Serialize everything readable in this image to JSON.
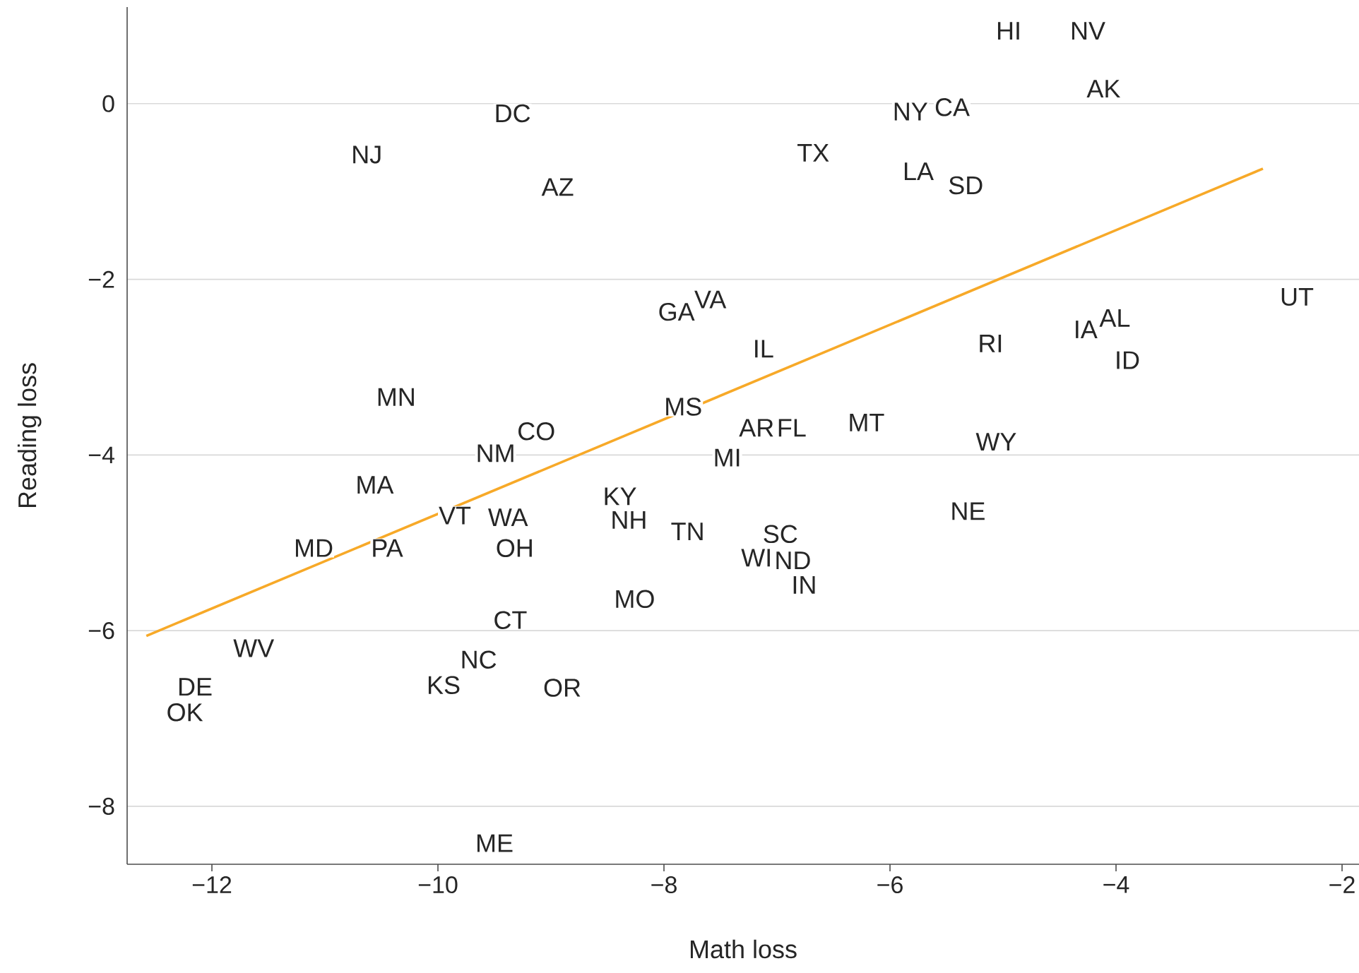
{
  "chart_data": {
    "type": "line",
    "xlabel": "Math loss",
    "ylabel": "Reading loss",
    "xlim": [
      -12.75,
      -1.85
    ],
    "ylim": [
      -8.66,
      1.1
    ],
    "xticks": [
      {
        "value": -12,
        "label": "−12"
      },
      {
        "value": -10,
        "label": "−10"
      },
      {
        "value": -8,
        "label": "−8"
      },
      {
        "value": -6,
        "label": "−6"
      },
      {
        "value": -4,
        "label": "−4"
      },
      {
        "value": -2,
        "label": "−2"
      }
    ],
    "yticks": [
      {
        "value": 0,
        "label": "0"
      },
      {
        "value": -2,
        "label": "−2"
      },
      {
        "value": -4,
        "label": "−4"
      },
      {
        "value": -6,
        "label": "−6"
      },
      {
        "value": -8,
        "label": "−8"
      }
    ],
    "grid": "y",
    "series": [
      {
        "color": "#f7a928",
        "x": [
          -12.58,
          -2.7
        ],
        "values": [
          -6.06,
          -0.74
        ]
      }
    ],
    "annotations": [
      {
        "text": "HI",
        "x": -4.95,
        "y": 0.83
      },
      {
        "text": "NV",
        "x": -4.25,
        "y": 0.83
      },
      {
        "text": "AK",
        "x": -4.11,
        "y": 0.17
      },
      {
        "text": "NY",
        "x": -5.82,
        "y": -0.09
      },
      {
        "text": "CA",
        "x": -5.45,
        "y": -0.04
      },
      {
        "text": "TX",
        "x": -6.68,
        "y": -0.56
      },
      {
        "text": "LA",
        "x": -5.75,
        "y": -0.77
      },
      {
        "text": "SD",
        "x": -5.33,
        "y": -0.93
      },
      {
        "text": "DC",
        "x": -9.34,
        "y": -0.11
      },
      {
        "text": "NJ",
        "x": -10.63,
        "y": -0.58
      },
      {
        "text": "AZ",
        "x": -8.94,
        "y": -0.95
      },
      {
        "text": "GA",
        "x": -7.89,
        "y": -2.37
      },
      {
        "text": "VA",
        "x": -7.59,
        "y": -2.23
      },
      {
        "text": "IL",
        "x": -7.12,
        "y": -2.79
      },
      {
        "text": "UT",
        "x": -2.4,
        "y": -2.2
      },
      {
        "text": "RI",
        "x": -5.11,
        "y": -2.73
      },
      {
        "text": "IA",
        "x": -4.27,
        "y": -2.57
      },
      {
        "text": "AL",
        "x": -4.01,
        "y": -2.44
      },
      {
        "text": "ID",
        "x": -3.9,
        "y": -2.92
      },
      {
        "text": "MN",
        "x": -10.37,
        "y": -3.34
      },
      {
        "text": "MS",
        "x": -7.83,
        "y": -3.45
      },
      {
        "text": "CO",
        "x": -9.13,
        "y": -3.73
      },
      {
        "text": "NM",
        "x": -9.49,
        "y": -3.98
      },
      {
        "text": "AR",
        "x": -7.18,
        "y": -3.69
      },
      {
        "text": "FL",
        "x": -6.87,
        "y": -3.69
      },
      {
        "text": "MT",
        "x": -6.21,
        "y": -3.63
      },
      {
        "text": "WY",
        "x": -5.06,
        "y": -3.85
      },
      {
        "text": "MI",
        "x": -7.44,
        "y": -4.03
      },
      {
        "text": "MA",
        "x": -10.56,
        "y": -4.34
      },
      {
        "text": "KY",
        "x": -8.39,
        "y": -4.47
      },
      {
        "text": "VT",
        "x": -9.85,
        "y": -4.69
      },
      {
        "text": "WA",
        "x": -9.38,
        "y": -4.71
      },
      {
        "text": "NH",
        "x": -8.31,
        "y": -4.74
      },
      {
        "text": "NE",
        "x": -5.31,
        "y": -4.64
      },
      {
        "text": "TN",
        "x": -7.79,
        "y": -4.87
      },
      {
        "text": "SC",
        "x": -6.97,
        "y": -4.9
      },
      {
        "text": "MD",
        "x": -11.1,
        "y": -5.06
      },
      {
        "text": "PA",
        "x": -10.45,
        "y": -5.06
      },
      {
        "text": "OH",
        "x": -9.32,
        "y": -5.06
      },
      {
        "text": "WI",
        "x": -7.18,
        "y": -5.17
      },
      {
        "text": "ND",
        "x": -6.86,
        "y": -5.2
      },
      {
        "text": "IN",
        "x": -6.76,
        "y": -5.48
      },
      {
        "text": "MO",
        "x": -8.26,
        "y": -5.64
      },
      {
        "text": "CT",
        "x": -9.36,
        "y": -5.88
      },
      {
        "text": "WV",
        "x": -11.63,
        "y": -6.2
      },
      {
        "text": "NC",
        "x": -9.64,
        "y": -6.33
      },
      {
        "text": "KS",
        "x": -9.95,
        "y": -6.62
      },
      {
        "text": "OR",
        "x": -8.9,
        "y": -6.65
      },
      {
        "text": "DE",
        "x": -12.15,
        "y": -6.64
      },
      {
        "text": "OK",
        "x": -12.24,
        "y": -6.93
      },
      {
        "text": "ME",
        "x": -9.5,
        "y": -8.42
      }
    ]
  }
}
